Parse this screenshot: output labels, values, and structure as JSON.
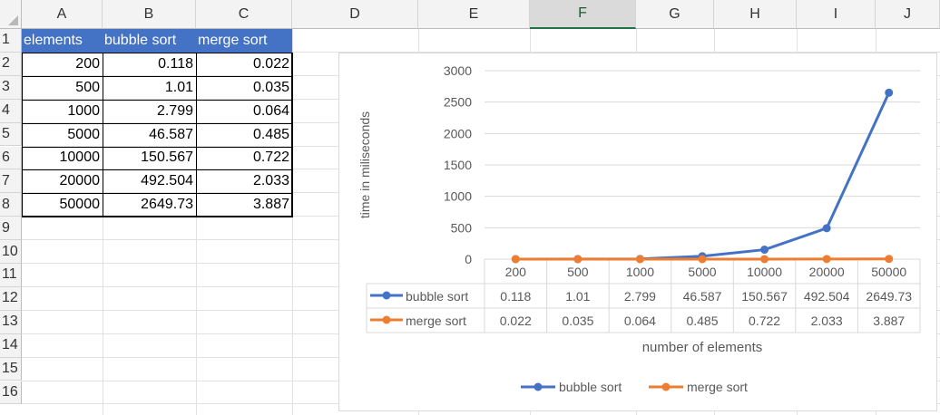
{
  "columns": [
    "A",
    "B",
    "C",
    "D",
    "E",
    "F",
    "G",
    "H",
    "I",
    "J"
  ],
  "selected_column": "F",
  "rows": [
    "1",
    "2",
    "3",
    "4",
    "5",
    "6",
    "7",
    "8",
    "9",
    "10",
    "11",
    "12",
    "13",
    "14",
    "15",
    "16"
  ],
  "table": {
    "headers": [
      "elements",
      "bubble sort",
      "merge sort"
    ],
    "rows": [
      [
        "200",
        "0.118",
        "0.022"
      ],
      [
        "500",
        "1.01",
        "0.035"
      ],
      [
        "1000",
        "2.799",
        "0.064"
      ],
      [
        "5000",
        "46.587",
        "0.485"
      ],
      [
        "10000",
        "150.567",
        "0.722"
      ],
      [
        "20000",
        "492.504",
        "2.033"
      ],
      [
        "50000",
        "2649.73",
        "3.887"
      ]
    ]
  },
  "chart_data": {
    "type": "line",
    "title": "",
    "xlabel": "number of elements",
    "ylabel": "time in miliseconds",
    "categories": [
      "200",
      "500",
      "1000",
      "5000",
      "10000",
      "20000",
      "50000"
    ],
    "series": [
      {
        "name": "bubble sort",
        "values": [
          0.118,
          1.01,
          2.799,
          46.587,
          150.567,
          492.504,
          2649.73
        ],
        "labels": [
          "0.118",
          "1.01",
          "2.799",
          "46.587",
          "150.567",
          "492.504",
          "2649.73"
        ],
        "color": "#4472c4"
      },
      {
        "name": "merge sort",
        "values": [
          0.022,
          0.035,
          0.064,
          0.485,
          0.722,
          2.033,
          3.887
        ],
        "labels": [
          "0.022",
          "0.035",
          "0.064",
          "0.485",
          "0.722",
          "2.033",
          "3.887"
        ],
        "color": "#ed7d31"
      }
    ],
    "ylim": [
      0,
      3000
    ],
    "yticks": [
      "0",
      "500",
      "1000",
      "1500",
      "2000",
      "2500",
      "3000"
    ],
    "grid": true,
    "data_table": true,
    "legend": "bottom"
  }
}
